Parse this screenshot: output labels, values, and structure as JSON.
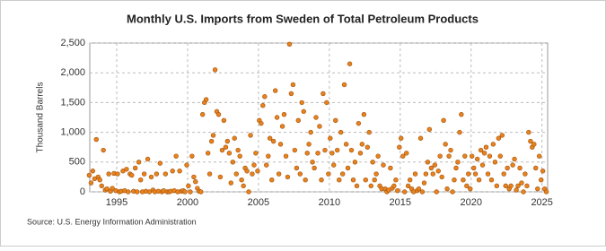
{
  "chart_data": {
    "type": "scatter",
    "title": "Monthly U.S. Imports from Sweden of Total Petroleum Products",
    "y_label": "Thousand Barrels",
    "source": "Source: U.S. Energy Information Administration",
    "color": "#e8821e",
    "grid": true,
    "xlim": [
      1993.1,
      2025.4
    ],
    "xticks": [
      1995,
      2000,
      2005,
      2010,
      2015,
      2020,
      2025
    ],
    "ylim": [
      0,
      2500
    ],
    "yticks": [
      0,
      {
        "value": 500,
        "label": "500"
      },
      {
        "value": 1000,
        "label": "1,000"
      },
      {
        "value": 1500,
        "label": "1,500"
      },
      {
        "value": 2000,
        "label": "2,000"
      },
      {
        "value": 2500,
        "label": "2,500"
      }
    ],
    "x": [
      1993.06,
      1993.19,
      1993.31,
      1993.44,
      1993.56,
      1993.69,
      1993.81,
      1993.94,
      1994.06,
      1994.19,
      1994.31,
      1994.44,
      1994.56,
      1994.69,
      1994.81,
      1994.94,
      1995.06,
      1995.19,
      1995.31,
      1995.44,
      1995.56,
      1995.69,
      1995.81,
      1995.94,
      1996.06,
      1996.19,
      1996.31,
      1996.44,
      1996.56,
      1996.69,
      1996.81,
      1996.94,
      1997.06,
      1997.19,
      1997.31,
      1997.44,
      1997.56,
      1997.69,
      1997.81,
      1997.94,
      1998.06,
      1998.19,
      1998.31,
      1998.44,
      1998.56,
      1998.69,
      1998.81,
      1998.94,
      1999.06,
      1999.19,
      1999.31,
      1999.44,
      1999.56,
      1999.69,
      1999.81,
      1999.94,
      2000.06,
      2000.19,
      2000.31,
      2000.44,
      2000.56,
      2000.69,
      2000.81,
      2000.94,
      2001.06,
      2001.19,
      2001.31,
      2001.44,
      2001.56,
      2001.69,
      2001.81,
      2001.94,
      2002.06,
      2002.19,
      2002.31,
      2002.44,
      2002.56,
      2002.69,
      2002.81,
      2002.94,
      2003.06,
      2003.19,
      2003.31,
      2003.44,
      2003.56,
      2003.69,
      2003.81,
      2003.94,
      2004.06,
      2004.19,
      2004.31,
      2004.44,
      2004.56,
      2004.69,
      2004.81,
      2004.94,
      2005.06,
      2005.19,
      2005.31,
      2005.44,
      2005.56,
      2005.69,
      2005.81,
      2005.94,
      2006.06,
      2006.19,
      2006.31,
      2006.44,
      2006.56,
      2006.69,
      2006.81,
      2006.94,
      2007.06,
      2007.19,
      2007.31,
      2007.44,
      2007.56,
      2007.69,
      2007.81,
      2007.94,
      2008.06,
      2008.19,
      2008.31,
      2008.44,
      2008.56,
      2008.69,
      2008.81,
      2008.94,
      2009.06,
      2009.19,
      2009.31,
      2009.44,
      2009.56,
      2009.69,
      2009.81,
      2009.94,
      2010.06,
      2010.19,
      2010.31,
      2010.44,
      2010.56,
      2010.69,
      2010.81,
      2010.94,
      2011.06,
      2011.19,
      2011.31,
      2011.44,
      2011.56,
      2011.69,
      2011.81,
      2011.94,
      2012.06,
      2012.19,
      2012.31,
      2012.44,
      2012.56,
      2012.69,
      2012.81,
      2012.94,
      2013.06,
      2013.19,
      2013.31,
      2013.44,
      2013.56,
      2013.69,
      2013.81,
      2013.94,
      2014.06,
      2014.19,
      2014.31,
      2014.44,
      2014.56,
      2014.69,
      2014.81,
      2014.94,
      2015.06,
      2015.19,
      2015.31,
      2015.44,
      2015.56,
      2015.69,
      2015.81,
      2015.94,
      2016.06,
      2016.19,
      2016.31,
      2016.44,
      2016.56,
      2016.69,
      2016.81,
      2016.94,
      2017.06,
      2017.19,
      2017.31,
      2017.44,
      2017.56,
      2017.69,
      2017.81,
      2017.94,
      2018.06,
      2018.19,
      2018.31,
      2018.44,
      2018.56,
      2018.69,
      2018.81,
      2018.94,
      2019.06,
      2019.19,
      2019.31,
      2019.44,
      2019.56,
      2019.69,
      2019.81,
      2019.94,
      2020.06,
      2020.19,
      2020.31,
      2020.44,
      2020.56,
      2020.69,
      2020.81,
      2020.94,
      2021.06,
      2021.19,
      2021.31,
      2021.44,
      2021.56,
      2021.69,
      2021.81,
      2021.94,
      2022.06,
      2022.19,
      2022.31,
      2022.44,
      2022.56,
      2022.69,
      2022.81,
      2022.94,
      2023.06,
      2023.19,
      2023.31,
      2023.44,
      2023.56,
      2023.69,
      2023.81,
      2023.94,
      2024.06,
      2024.19,
      2024.31,
      2024.44,
      2024.56,
      2024.69,
      2024.81,
      2024.94,
      2025.06,
      2025.19,
      2025.31
    ],
    "values": [
      280,
      150,
      350,
      220,
      880,
      250,
      200,
      100,
      700,
      30,
      50,
      300,
      10,
      60,
      310,
      20,
      300,
      0,
      10,
      350,
      20,
      380,
      0,
      300,
      280,
      10,
      400,
      0,
      500,
      200,
      0,
      300,
      10,
      550,
      0,
      250,
      30,
      0,
      300,
      10,
      480,
      0,
      20,
      300,
      0,
      0,
      10,
      350,
      20,
      600,
      0,
      350,
      10,
      20,
      0,
      450,
      100,
      0,
      600,
      250,
      170,
      60,
      10,
      0,
      1300,
      1500,
      1550,
      650,
      300,
      850,
      950,
      2050,
      1350,
      1300,
      250,
      700,
      1200,
      750,
      850,
      650,
      150,
      500,
      900,
      300,
      700,
      600,
      200,
      100,
      400,
      350,
      0,
      950,
      300,
      450,
      650,
      350,
      1200,
      1150,
      1450,
      1600,
      450,
      600,
      900,
      200,
      850,
      1700,
      1250,
      300,
      800,
      1100,
      1300,
      600,
      250,
      2480,
      1650,
      1800,
      700,
      400,
      1200,
      300,
      1500,
      1350,
      200,
      650,
      800,
      1000,
      500,
      400,
      1250,
      650,
      1100,
      200,
      1650,
      700,
      1500,
      300,
      900,
      650,
      450,
      1200,
      700,
      200,
      1000,
      300,
      1800,
      800,
      400,
      2150,
      700,
      200,
      500,
      100,
      1150,
      650,
      800,
      1300,
      200,
      750,
      1000,
      100,
      500,
      200,
      300,
      600,
      100,
      50,
      450,
      50,
      0,
      30,
      400,
      60,
      100,
      200,
      20,
      750,
      900,
      600,
      0,
      650,
      100,
      200,
      50,
      0,
      300,
      20,
      50,
      900,
      0,
      150,
      300,
      500,
      1050,
      400,
      300,
      450,
      0,
      350,
      600,
      250,
      1200,
      800,
      50,
      600,
      700,
      0,
      200,
      400,
      500,
      1000,
      1300,
      200,
      600,
      100,
      300,
      50,
      600,
      400,
      300,
      550,
      200,
      700,
      450,
      650,
      750,
      300,
      600,
      200,
      800,
      500,
      100,
      900,
      600,
      950,
      300,
      100,
      400,
      50,
      100,
      450,
      550,
      30,
      100,
      400,
      150,
      0,
      300,
      100,
      1000,
      850,
      750,
      800,
      400,
      50,
      600,
      200,
      350,
      50,
      0
    ]
  }
}
